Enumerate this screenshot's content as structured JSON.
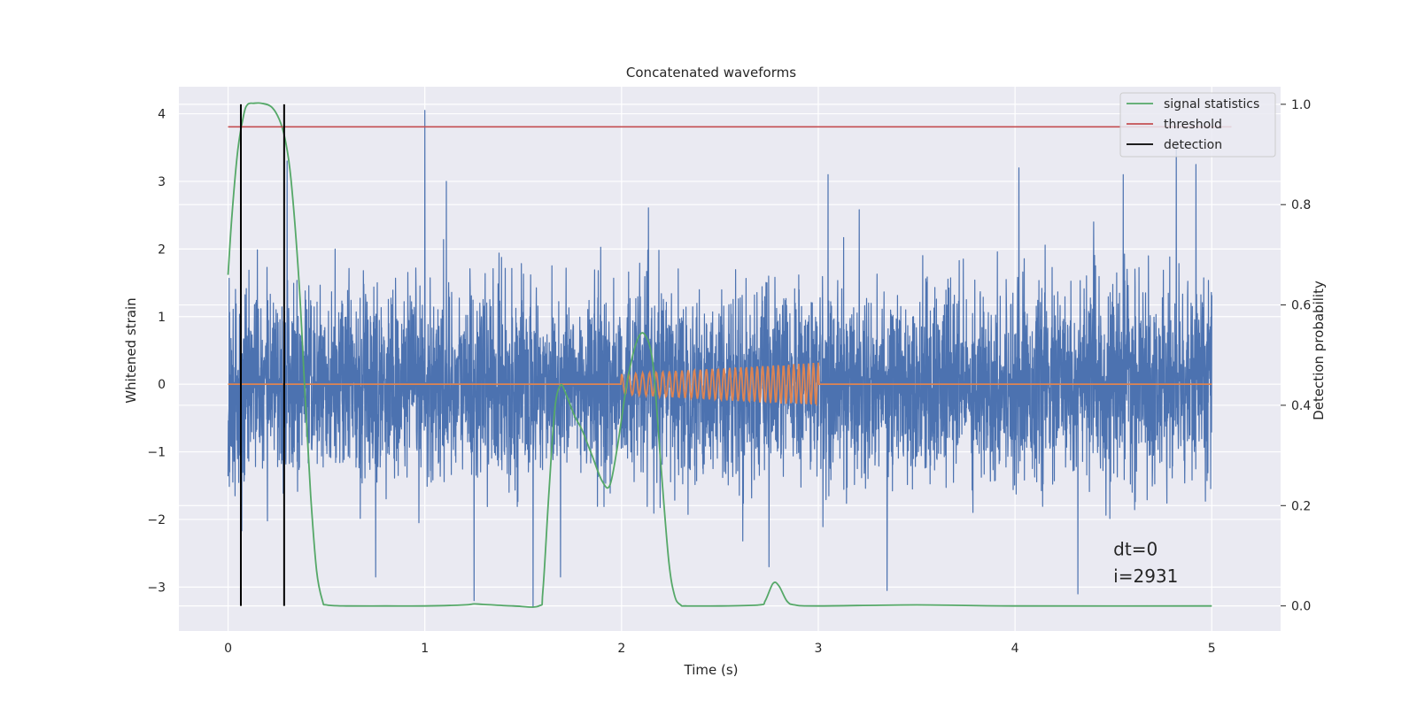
{
  "chart_data": {
    "type": "line",
    "title": "Concatenated waveforms",
    "xlabel": "Time (s)",
    "ylabel": "Whitened strain",
    "y2label": "Detection probability",
    "xlim": [
      -0.25,
      5.35
    ],
    "ylim": [
      -3.65,
      4.4
    ],
    "y2lim": [
      -0.05,
      1.035
    ],
    "x_ticks": [
      0,
      1,
      2,
      3,
      4,
      5
    ],
    "x_tick_labels": [
      "0",
      "1",
      "2",
      "3",
      "4",
      "5"
    ],
    "y_ticks": [
      4,
      3,
      2,
      1,
      0,
      -1,
      -2,
      -3
    ],
    "y_tick_labels": [
      "4",
      "3",
      "2",
      "1",
      "0",
      "−1",
      "−2",
      "−3"
    ],
    "y2_ticks": [
      1.0,
      0.8,
      0.6,
      0.4,
      0.2,
      0.0
    ],
    "y2_tick_labels": [
      "1.0",
      "0.8",
      "0.6",
      "0.4",
      "0.2",
      "0.0"
    ],
    "grid": true,
    "legend_position": "top-right",
    "legend": [
      {
        "label": "signal statistics",
        "color": "#55a868"
      },
      {
        "label": "threshold",
        "color": "#c44e52"
      },
      {
        "label": "detection",
        "color": "#000000"
      }
    ],
    "series": [
      {
        "role": "strain",
        "axis": "left",
        "color": "#4c72b0",
        "x_range": [
          0,
          5
        ],
        "typical_amplitude": 1.1,
        "peaks": [
          [
            1.0,
            4.05
          ],
          [
            1.11,
            3.0
          ],
          [
            3.05,
            3.1
          ],
          [
            4.02,
            3.2
          ],
          [
            4.4,
            2.4
          ],
          [
            4.55,
            3.1
          ],
          [
            4.82,
            3.6
          ],
          [
            4.92,
            3.25
          ],
          [
            0.3,
            3.3
          ],
          [
            1.55,
            -3.3
          ],
          [
            1.25,
            -3.2
          ],
          [
            3.35,
            -3.05
          ],
          [
            4.32,
            -3.1
          ],
          [
            0.75,
            -2.85
          ],
          [
            1.69,
            -2.85
          ],
          [
            2.75,
            -2.7
          ]
        ]
      },
      {
        "role": "injected waveform",
        "axis": "left",
        "color": "#dd8452",
        "x": [
          0,
          2.0,
          3.0,
          5.0
        ],
        "y": [
          0,
          0,
          0,
          0
        ],
        "chirp_start": 2.0,
        "chirp_end": 3.0,
        "chirp_amplitude": [
          0.15,
          0.32
        ],
        "chirp_cycles": 34
      },
      {
        "name": "signal statistics",
        "axis": "right",
        "color": "#55a868",
        "x": [
          0,
          0.02,
          0.05,
          0.08,
          0.1,
          0.13,
          0.17,
          0.22,
          0.26,
          0.29,
          0.32,
          0.36,
          0.39,
          0.42,
          0.45,
          0.48,
          0.5,
          0.6,
          0.8,
          1.0,
          1.2,
          1.25,
          1.3,
          1.45,
          1.58,
          1.6,
          1.63,
          1.66,
          1.69,
          1.72,
          1.76,
          1.8,
          1.85,
          1.9,
          1.94,
          1.98,
          2.03,
          2.08,
          2.12,
          2.16,
          2.2,
          2.24,
          2.27,
          2.3,
          2.33,
          2.5,
          2.7,
          2.73,
          2.77,
          2.8,
          2.84,
          2.88,
          3.0,
          3.5,
          4.0,
          5.0
        ],
        "y": [
          0.66,
          0.78,
          0.91,
          0.98,
          1.0,
          1.002,
          1.002,
          0.995,
          0.97,
          0.93,
          0.85,
          0.65,
          0.43,
          0.22,
          0.07,
          0.01,
          0.002,
          0.0,
          0.0,
          0.0,
          0.002,
          0.004,
          0.003,
          0.0,
          0.0,
          0.03,
          0.22,
          0.39,
          0.44,
          0.42,
          0.38,
          0.35,
          0.3,
          0.25,
          0.24,
          0.32,
          0.45,
          0.53,
          0.54,
          0.48,
          0.28,
          0.09,
          0.02,
          0.002,
          0.0,
          0.0,
          0.002,
          0.01,
          0.045,
          0.04,
          0.01,
          0.002,
          0.0,
          0.002,
          0.0,
          0.0
        ]
      },
      {
        "name": "threshold",
        "axis": "right",
        "color": "#c44e52",
        "x": [
          0,
          5.1
        ],
        "y": [
          0.955,
          0.955
        ]
      },
      {
        "name": "detection",
        "axis": "right",
        "color": "#000000",
        "vlines": [
          0.065,
          0.285
        ],
        "y_range": [
          0.0,
          1.0
        ]
      }
    ],
    "annotations": [
      {
        "text": "dt=0",
        "x": 4.5,
        "y": -2.53
      },
      {
        "text": "i=2931",
        "x": 4.5,
        "y": -2.93
      }
    ]
  }
}
